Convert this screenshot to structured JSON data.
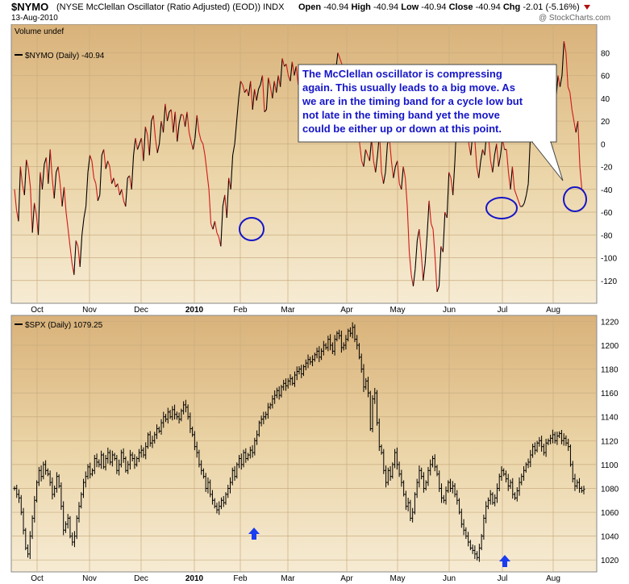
{
  "header": {
    "symbol": "$NYMO",
    "name": "(NYSE McClellan Oscillator (Ratio Adjusted) (EOD))",
    "exchange": "INDX",
    "date": "13-Aug-2010",
    "open_label": "Open",
    "open": "-40.94",
    "high_label": "High",
    "high": "-40.94",
    "low_label": "Low",
    "low": "-40.94",
    "close_label": "Close",
    "close": "-40.94",
    "chg_label": "Chg",
    "chg": "-2.01 (-5.16%)",
    "watermark": "@ StockCharts.com"
  },
  "colors": {
    "panel_bg": "#e6c690",
    "up": "#000000",
    "down": "#d01818",
    "annotation": "#1515c8",
    "arrow": "#1a3cf0"
  },
  "chart_data": [
    {
      "type": "line",
      "legend_top": "Volume undef",
      "legend": "$NYMO (Daily) -40.94",
      "ylim": [
        -140,
        105
      ],
      "yticks": [
        80,
        60,
        40,
        20,
        0,
        -20,
        -40,
        -60,
        -80,
        -100,
        -120
      ],
      "x_labels": [
        "Oct",
        "Nov",
        "Dec",
        "2010",
        "Feb",
        "Mar",
        "Apr",
        "May",
        "Jun",
        "Jul",
        "Aug"
      ],
      "grid": true,
      "note": "Line colored black while rising and red while falling",
      "values": [
        -40,
        -58,
        -68,
        -20,
        -36,
        -45,
        -14,
        -22,
        -38,
        -78,
        -52,
        -62,
        -80,
        -25,
        -40,
        -18,
        -12,
        -35,
        -5,
        -30,
        -48,
        -25,
        -20,
        -35,
        -55,
        -38,
        -60,
        -75,
        -90,
        -105,
        -115,
        -85,
        -90,
        -108,
        -80,
        -65,
        -55,
        -25,
        -10,
        -15,
        -30,
        -35,
        -50,
        -45,
        -10,
        -5,
        -22,
        -15,
        -20,
        -35,
        -30,
        -38,
        -35,
        -45,
        -40,
        -50,
        -55,
        -30,
        -28,
        -40,
        -10,
        5,
        -5,
        0,
        5,
        -15,
        15,
        8,
        -10,
        20,
        25,
        5,
        -8,
        0,
        20,
        10,
        35,
        20,
        28,
        30,
        10,
        28,
        2,
        18,
        26,
        25,
        15,
        28,
        10,
        2,
        -5,
        5,
        25,
        10,
        3,
        0,
        -10,
        -25,
        -40,
        -70,
        -75,
        -68,
        -78,
        -82,
        -90,
        -55,
        -45,
        -65,
        -30,
        -40,
        -10,
        0,
        20,
        40,
        55,
        52,
        45,
        48,
        42,
        55,
        30,
        48,
        38,
        48,
        52,
        60,
        28,
        30,
        58,
        50,
        40,
        55,
        45,
        60,
        50,
        75,
        68,
        70,
        60,
        55,
        72,
        60,
        68,
        52,
        60,
        45,
        55,
        48,
        35,
        50,
        42,
        30,
        45,
        35,
        55,
        40,
        50,
        38,
        60,
        55,
        62,
        70,
        65,
        80,
        75,
        70,
        60,
        65,
        55,
        45,
        35,
        25,
        30,
        15,
        0,
        -15,
        -20,
        -5,
        -10,
        -15,
        5,
        -15,
        -25,
        -10,
        10,
        -25,
        -35,
        -25,
        0,
        5,
        -15,
        -30,
        -20,
        -15,
        -35,
        -40,
        -20,
        -30,
        -55,
        -95,
        -115,
        -125,
        -110,
        -85,
        -75,
        -95,
        -120,
        -105,
        -80,
        -50,
        -70,
        -75,
        -100,
        -130,
        -125,
        -90,
        -95,
        -60,
        -65,
        -25,
        -30,
        -45,
        -15,
        25,
        15,
        5,
        10,
        20,
        30,
        0,
        -10,
        10,
        5,
        -20,
        -30,
        -15,
        -5,
        -10,
        10,
        5,
        -15,
        -25,
        -10,
        0,
        -20,
        -10,
        5,
        -5,
        -5,
        -25,
        -40,
        -20,
        -40,
        -45,
        -50,
        -55,
        -55,
        -52,
        -45,
        -35,
        5,
        25,
        35,
        60,
        45,
        50,
        25,
        15,
        10,
        35,
        40,
        30,
        25,
        40,
        60,
        50,
        60,
        90,
        80,
        50,
        45,
        30,
        20,
        10,
        20,
        -20,
        -40,
        -40.94
      ],
      "annotation_text": [
        "The McClellan oscillator is compressing",
        "again. This usually leads to a big move. As",
        "we are in the timing band for a cycle low but",
        "not late in the timing band yet the move",
        "could be either up or down at this point."
      ]
    },
    {
      "type": "bar",
      "legend": "$SPX (Daily) 1079.25",
      "ylim": [
        1010,
        1225
      ],
      "yticks": [
        1220,
        1200,
        1180,
        1160,
        1140,
        1120,
        1100,
        1080,
        1060,
        1040,
        1020
      ],
      "x_labels": [
        "Oct",
        "Nov",
        "Dec",
        "2010",
        "Feb",
        "Mar",
        "Apr",
        "May",
        "Jun",
        "Jul",
        "Aug"
      ],
      "grid": true,
      "note": "Daily OHLC bars",
      "closes": [
        1080,
        1075,
        1072,
        1060,
        1045,
        1030,
        1025,
        1040,
        1055,
        1070,
        1085,
        1095,
        1090,
        1100,
        1095,
        1092,
        1085,
        1075,
        1080,
        1090,
        1082,
        1065,
        1045,
        1050,
        1055,
        1040,
        1035,
        1040,
        1055,
        1065,
        1075,
        1085,
        1090,
        1098,
        1092,
        1095,
        1105,
        1102,
        1100,
        1108,
        1098,
        1105,
        1110,
        1102,
        1108,
        1105,
        1095,
        1100,
        1110,
        1105,
        1095,
        1100,
        1108,
        1105,
        1100,
        1105,
        1110,
        1112,
        1108,
        1115,
        1125,
        1118,
        1120,
        1125,
        1130,
        1128,
        1135,
        1140,
        1138,
        1144,
        1140,
        1146,
        1142,
        1140,
        1138,
        1145,
        1150,
        1148,
        1140,
        1130,
        1125,
        1115,
        1110,
        1100,
        1095,
        1090,
        1080,
        1085,
        1075,
        1070,
        1065,
        1062,
        1065,
        1070,
        1068,
        1075,
        1080,
        1085,
        1095,
        1090,
        1100,
        1105,
        1100,
        1110,
        1105,
        1108,
        1112,
        1110,
        1120,
        1125,
        1135,
        1138,
        1140,
        1142,
        1148,
        1150,
        1155,
        1158,
        1162,
        1158,
        1165,
        1168,
        1166,
        1170,
        1172,
        1168,
        1175,
        1178,
        1180,
        1176,
        1182,
        1185,
        1188,
        1186,
        1188,
        1192,
        1195,
        1190,
        1195,
        1200,
        1198,
        1205,
        1200,
        1195,
        1205,
        1210,
        1208,
        1198,
        1200,
        1205,
        1212,
        1210,
        1215,
        1205,
        1200,
        1190,
        1180,
        1165,
        1170,
        1160,
        1130,
        1155,
        1160,
        1135,
        1115,
        1110,
        1095,
        1085,
        1095,
        1090,
        1100,
        1110,
        1100,
        1092,
        1085,
        1075,
        1065,
        1068,
        1055,
        1060,
        1075,
        1085,
        1095,
        1090,
        1080,
        1085,
        1095,
        1100,
        1105,
        1098,
        1092,
        1080,
        1072,
        1070,
        1078,
        1085,
        1080,
        1082,
        1075,
        1070,
        1060,
        1050,
        1045,
        1040,
        1035,
        1030,
        1028,
        1025,
        1022,
        1030,
        1040,
        1055,
        1065,
        1070,
        1075,
        1068,
        1072,
        1080,
        1090,
        1095,
        1092,
        1088,
        1082,
        1085,
        1075,
        1072,
        1078,
        1085,
        1090,
        1095,
        1100,
        1102,
        1108,
        1115,
        1112,
        1118,
        1120,
        1115,
        1110,
        1118,
        1120,
        1122,
        1125,
        1120,
        1124,
        1126,
        1120,
        1122,
        1118,
        1115,
        1100,
        1088,
        1082,
        1085,
        1080,
        1078,
        1079.25
      ]
    }
  ]
}
